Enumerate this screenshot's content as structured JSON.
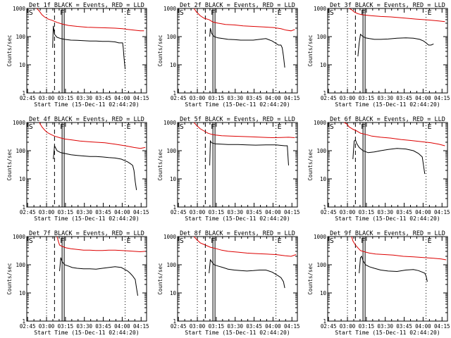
{
  "figure": {
    "xlabel": "Start Time (15-Dec-11 02:44:20)",
    "ylabel": "Counts/sec",
    "xticks": [
      "02:45",
      "03:00",
      "03:15",
      "03:30",
      "03:45",
      "04:00",
      "04:15"
    ],
    "yticks": [
      "1",
      "10",
      "100",
      "1000"
    ]
  },
  "chart_data": [
    {
      "type": "line",
      "title": "Det 1f BLACK = Events, RED = LLD",
      "xlabel": "Start Time (15-Dec-11 02:44:20)",
      "ylabel": "Counts/sec",
      "ylim": [
        1,
        1000
      ],
      "yscale": "log",
      "xlim_minutes": [
        0,
        95
      ],
      "markers": {
        "S": 1,
        "F": 28,
        "E": 78
      },
      "series": [
        {
          "name": "Events",
          "color": "#000000",
          "x": [
            20.5,
            21,
            22,
            24,
            27,
            30,
            35,
            40,
            45,
            50,
            55,
            60,
            65,
            70,
            73,
            75,
            76,
            76.5,
            77,
            78
          ],
          "y": [
            40,
            240,
            120,
            95,
            85,
            80,
            75,
            74,
            72,
            70,
            70,
            68,
            68,
            65,
            60,
            60,
            60,
            40,
            20,
            7
          ]
        },
        {
          "name": "LLD",
          "color": "#dd0000",
          "x": [
            8,
            10,
            12,
            14,
            17,
            20,
            24,
            28,
            33,
            40,
            48,
            55,
            62,
            70,
            76,
            80,
            85,
            90,
            93
          ],
          "y": [
            1000,
            800,
            600,
            500,
            420,
            380,
            320,
            280,
            250,
            230,
            215,
            210,
            205,
            200,
            190,
            180,
            170,
            160,
            160
          ]
        }
      ]
    },
    {
      "type": "line",
      "title": "Det 2f BLACK = Events, RED = LLD",
      "xlabel": "Start Time (15-Dec-11 02:44:20)",
      "ylabel": "Counts/sec",
      "ylim": [
        1,
        1000
      ],
      "yscale": "log",
      "xlim_minutes": [
        0,
        95
      ],
      "markers": {
        "S": 1,
        "F": 28,
        "E": 78
      },
      "series": [
        {
          "name": "Events",
          "color": "#000000",
          "x": [
            25.5,
            26,
            27,
            29,
            32,
            36,
            40,
            45,
            50,
            55,
            60,
            65,
            70,
            75,
            80,
            82,
            83,
            84,
            85
          ],
          "y": [
            100,
            200,
            130,
            100,
            90,
            85,
            80,
            78,
            75,
            75,
            75,
            80,
            85,
            70,
            50,
            50,
            40,
            20,
            8
          ]
        },
        {
          "name": "LLD",
          "color": "#dd0000",
          "x": [
            13,
            15,
            18,
            21,
            25,
            28,
            32,
            38,
            45,
            52,
            60,
            68,
            76,
            82,
            86,
            90,
            93
          ],
          "y": [
            1000,
            750,
            550,
            450,
            400,
            330,
            300,
            270,
            260,
            240,
            230,
            220,
            210,
            190,
            170,
            160,
            180
          ]
        }
      ]
    },
    {
      "type": "line",
      "title": "Det 3f BLACK = Events, RED = LLD",
      "xlabel": "Start Time (15-Dec-11 02:44:20)",
      "ylabel": "Counts/sec",
      "ylim": [
        1,
        1000
      ],
      "yscale": "log",
      "xlim_minutes": [
        0,
        95
      ],
      "markers": {
        "S": 1,
        "F": 28,
        "E": 78
      },
      "series": [
        {
          "name": "Events",
          "color": "#000000",
          "x": [
            24,
            25,
            26,
            28,
            30,
            33,
            37,
            42,
            48,
            55,
            62,
            68,
            73,
            76,
            78,
            80,
            82,
            84
          ],
          "y": [
            20,
            60,
            120,
            100,
            90,
            85,
            80,
            80,
            82,
            88,
            90,
            88,
            80,
            70,
            60,
            50,
            50,
            55
          ]
        },
        {
          "name": "LLD",
          "color": "#dd0000",
          "x": [
            17,
            19,
            21,
            24,
            27,
            30,
            35,
            42,
            50,
            60,
            70,
            80,
            88,
            93
          ],
          "y": [
            1000,
            900,
            750,
            650,
            600,
            580,
            550,
            520,
            500,
            460,
            420,
            390,
            360,
            340
          ]
        }
      ]
    },
    {
      "type": "line",
      "title": "Det 4f BLACK = Events, RED = LLD",
      "xlabel": "Start Time (15-Dec-11 02:44:20)",
      "ylabel": "Counts/sec",
      "ylim": [
        1,
        1000
      ],
      "yscale": "log",
      "xlim_minutes": [
        0,
        95
      ],
      "markers": {
        "S": 1,
        "F": 28,
        "E": 78
      },
      "series": [
        {
          "name": "Events",
          "color": "#000000",
          "x": [
            21,
            22,
            24,
            27,
            30,
            35,
            40,
            45,
            50,
            55,
            60,
            65,
            70,
            75,
            80,
            82,
            84,
            85,
            86,
            87
          ],
          "y": [
            50,
            150,
            100,
            85,
            80,
            72,
            68,
            65,
            62,
            62,
            60,
            57,
            55,
            50,
            40,
            35,
            30,
            20,
            8,
            4
          ]
        },
        {
          "name": "LLD",
          "color": "#dd0000",
          "x": [
            10,
            12,
            14,
            16,
            19,
            22,
            26,
            30,
            36,
            42,
            48,
            55,
            62,
            70,
            78,
            85,
            90,
            94
          ],
          "y": [
            1000,
            700,
            550,
            450,
            380,
            330,
            290,
            260,
            240,
            220,
            210,
            200,
            190,
            170,
            150,
            130,
            120,
            130
          ]
        }
      ]
    },
    {
      "type": "line",
      "title": "Det 5f BLACK = Events, RED = LLD",
      "xlabel": "Start Time (15-Dec-11 02:44:20)",
      "ylabel": "Counts/sec",
      "ylim": [
        1,
        1000
      ],
      "yscale": "log",
      "xlim_minutes": [
        0,
        95
      ],
      "markers": {
        "S": 1,
        "F": 28,
        "E": 78
      },
      "series": [
        {
          "name": "Events",
          "color": "#000000",
          "x": [
            25.5,
            26,
            27,
            30,
            35,
            40,
            48,
            55,
            62,
            70,
            78,
            85,
            87,
            88
          ],
          "y": [
            30,
            220,
            190,
            175,
            170,
            165,
            165,
            160,
            158,
            160,
            160,
            150,
            150,
            30
          ]
        },
        {
          "name": "LLD",
          "color": "#dd0000",
          "x": [
            13,
            15,
            18,
            21,
            24,
            27,
            30,
            35,
            42,
            50,
            58,
            66,
            75,
            82,
            88,
            93
          ],
          "y": [
            1000,
            800,
            600,
            500,
            420,
            380,
            360,
            340,
            330,
            320,
            310,
            300,
            290,
            295,
            300,
            290
          ]
        }
      ]
    },
    {
      "type": "line",
      "title": "Det 6f BLACK = Events, RED = LLD",
      "xlabel": "Start Time (15-Dec-11 02:44:20)",
      "ylabel": "Counts/sec",
      "ylim": [
        1,
        1000
      ],
      "yscale": "log",
      "xlim_minutes": [
        0,
        95
      ],
      "markers": {
        "S": 1,
        "F": 28,
        "E": 78
      },
      "series": [
        {
          "name": "Events",
          "color": "#000000",
          "x": [
            20,
            21,
            22,
            23,
            25,
            28,
            32,
            37,
            42,
            48,
            55,
            62,
            68,
            72,
            75,
            76,
            77
          ],
          "y": [
            50,
            220,
            240,
            180,
            130,
            100,
            85,
            90,
            100,
            110,
            120,
            115,
            100,
            80,
            60,
            30,
            15
          ]
        },
        {
          "name": "LLD",
          "color": "#dd0000",
          "x": [
            13,
            15,
            17,
            20,
            23,
            26,
            30,
            35,
            42,
            50,
            58,
            66,
            74,
            82,
            88,
            93
          ],
          "y": [
            1000,
            900,
            700,
            580,
            500,
            420,
            380,
            330,
            300,
            280,
            250,
            230,
            210,
            190,
            170,
            150
          ]
        }
      ]
    },
    {
      "type": "line",
      "title": "Det 7f BLACK = Events, RED = LLD",
      "xlabel": "Start Time (15-Dec-11 02:44:20)",
      "ylabel": "Counts/sec",
      "ylim": [
        1,
        1000
      ],
      "yscale": "log",
      "xlim_minutes": [
        0,
        95
      ],
      "markers": {
        "S": 1,
        "F": 28,
        "E": 78
      },
      "series": [
        {
          "name": "Events",
          "color": "#000000",
          "x": [
            26,
            27,
            28,
            30,
            33,
            36,
            40,
            45,
            50,
            55,
            60,
            65,
            70,
            75,
            80,
            82,
            84,
            86,
            87,
            88
          ],
          "y": [
            60,
            180,
            130,
            100,
            90,
            80,
            75,
            72,
            72,
            70,
            75,
            80,
            85,
            80,
            60,
            50,
            40,
            30,
            15,
            8
          ]
        },
        {
          "name": "LLD",
          "color": "#dd0000",
          "x": [
            24,
            25,
            26,
            28,
            31,
            35,
            40,
            45,
            50,
            55,
            60,
            65,
            70,
            75,
            80,
            85,
            90,
            94
          ],
          "y": [
            1000,
            700,
            500,
            450,
            400,
            370,
            350,
            330,
            330,
            320,
            320,
            330,
            330,
            320,
            310,
            300,
            290,
            300
          ]
        }
      ]
    },
    {
      "type": "line",
      "title": "Det 8f BLACK = Events, RED = LLD",
      "xlabel": "Start Time (15-Dec-11 02:44:20)",
      "ylabel": "Counts/sec",
      "ylim": [
        1,
        1000
      ],
      "yscale": "log",
      "xlim_minutes": [
        0,
        95
      ],
      "markers": {
        "S": 1,
        "F": 28,
        "E": 78
      },
      "series": [
        {
          "name": "Events",
          "color": "#000000",
          "x": [
            25,
            26,
            27,
            29,
            32,
            36,
            40,
            45,
            50,
            55,
            60,
            65,
            70,
            75,
            80,
            82,
            84,
            85
          ],
          "y": [
            50,
            150,
            130,
            100,
            90,
            80,
            70,
            65,
            62,
            60,
            62,
            65,
            65,
            55,
            40,
            35,
            25,
            15
          ]
        },
        {
          "name": "LLD",
          "color": "#dd0000",
          "x": [
            13,
            15,
            18,
            22,
            26,
            30,
            35,
            40,
            48,
            55,
            62,
            70,
            78,
            85,
            90,
            94
          ],
          "y": [
            1000,
            800,
            600,
            500,
            420,
            380,
            330,
            300,
            280,
            260,
            250,
            240,
            230,
            210,
            200,
            230
          ]
        }
      ]
    },
    {
      "type": "line",
      "title": "Det 9f BLACK = Events, RED = LLD",
      "xlabel": "Start Time (15-Dec-11 02:44:20)",
      "ylabel": "Counts/sec",
      "ylim": [
        1,
        1000
      ],
      "yscale": "log",
      "xlim_minutes": [
        0,
        95
      ],
      "markers": {
        "S": 1,
        "F": 28,
        "E": 78
      },
      "series": [
        {
          "name": "Events",
          "color": "#000000",
          "x": [
            25,
            26,
            27,
            28,
            30,
            33,
            37,
            42,
            48,
            55,
            62,
            68,
            72,
            75,
            77,
            78,
            79
          ],
          "y": [
            50,
            180,
            200,
            140,
            100,
            85,
            75,
            65,
            60,
            58,
            65,
            68,
            62,
            55,
            50,
            40,
            25
          ]
        },
        {
          "name": "LLD",
          "color": "#dd0000",
          "x": [
            19,
            20,
            22,
            24,
            26,
            29,
            33,
            38,
            45,
            52,
            60,
            68,
            76,
            84,
            90,
            94
          ],
          "y": [
            1000,
            700,
            500,
            400,
            320,
            290,
            260,
            240,
            230,
            220,
            200,
            190,
            180,
            170,
            160,
            150
          ]
        }
      ]
    }
  ]
}
